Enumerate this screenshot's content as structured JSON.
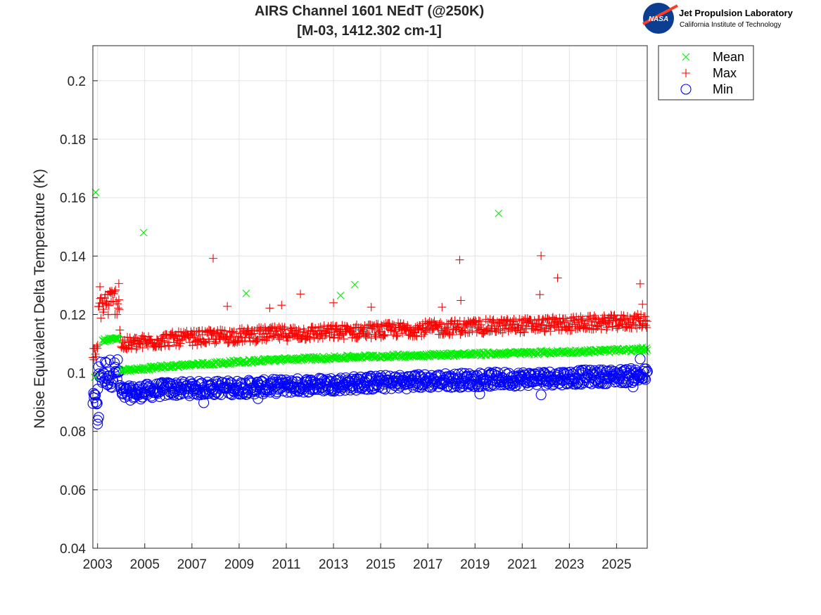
{
  "logo": {
    "nasa_text": "NASA",
    "title": "Jet Propulsion Laboratory",
    "subtitle": "California Institute of Technology",
    "nasa_blue": "#0b3d91",
    "nasa_red": "#fc3d21"
  },
  "chart_data": {
    "type": "scatter",
    "title": [
      "AIRS Channel 1601 NEdT (@250K)",
      "[M-03, 1412.302 cm-1]"
    ],
    "xlabel": "",
    "ylabel": "Noise Equivalent Delta Temperature (K)",
    "xlim": [
      2002.8,
      2026.3
    ],
    "ylim": [
      0.04,
      0.212
    ],
    "xticks": [
      2003,
      2005,
      2007,
      2009,
      2011,
      2013,
      2015,
      2017,
      2019,
      2021,
      2023,
      2025
    ],
    "yticks": [
      0.04,
      0.06,
      0.08,
      0.1,
      0.12,
      0.14,
      0.16,
      0.18,
      0.2
    ],
    "ytick_labels": [
      "0.04",
      "0.06",
      "0.08",
      "0.1",
      "0.12",
      "0.14",
      "0.16",
      "0.18",
      "0.2"
    ],
    "grid": true,
    "legend_position": "outside-top-right",
    "series": [
      {
        "name": "Mean",
        "marker": "x",
        "color": "#00ee00",
        "trend": [
          [
            2003.2,
            0.1112
          ],
          [
            2003.9,
            0.1118
          ],
          [
            2004.0,
            0.1006
          ],
          [
            2006.0,
            0.1023
          ],
          [
            2010.0,
            0.1043
          ],
          [
            2014.0,
            0.1055
          ],
          [
            2018.0,
            0.1063
          ],
          [
            2022.0,
            0.107
          ],
          [
            2026.3,
            0.108
          ]
        ],
        "points": [
          [
            2002.88,
            0.0985
          ],
          [
            2002.92,
            0.1618
          ],
          [
            2003.3,
            0.1108
          ],
          [
            2003.6,
            0.1115
          ],
          [
            2003.8,
            0.112
          ],
          [
            2004.95,
            0.148
          ],
          [
            2009.3,
            0.1272
          ],
          [
            2013.3,
            0.1265
          ],
          [
            2013.9,
            0.1302
          ],
          [
            2020.0,
            0.1546
          ],
          [
            2026.1,
            0.1088
          ]
        ]
      },
      {
        "name": "Max",
        "marker": "+",
        "color": "#ff0000",
        "trend": [
          [
            2002.8,
            0.1065
          ],
          [
            2003.0,
            0.1068
          ],
          [
            2003.05,
            0.123
          ],
          [
            2003.9,
            0.125
          ],
          [
            2004.0,
            0.1095
          ],
          [
            2006.0,
            0.1115
          ],
          [
            2010.0,
            0.1132
          ],
          [
            2014.0,
            0.1142
          ],
          [
            2018.0,
            0.1155
          ],
          [
            2022.0,
            0.1165
          ],
          [
            2026.3,
            0.1178
          ]
        ],
        "points": [
          [
            2003.1,
            0.1295
          ],
          [
            2003.9,
            0.1306
          ],
          [
            2007.9,
            0.1392
          ],
          [
            2008.5,
            0.1228
          ],
          [
            2010.3,
            0.1222
          ],
          [
            2010.8,
            0.1232
          ],
          [
            2011.6,
            0.127
          ],
          [
            2013.0,
            0.124
          ],
          [
            2014.6,
            0.1225
          ],
          [
            2017.6,
            0.1225
          ],
          [
            2018.35,
            0.1387
          ],
          [
            2018.4,
            0.1248
          ],
          [
            2021.8,
            0.1401
          ],
          [
            2021.75,
            0.1268
          ],
          [
            2022.5,
            0.1325
          ],
          [
            2026.0,
            0.1305
          ],
          [
            2026.1,
            0.1235
          ]
        ]
      },
      {
        "name": "Min",
        "marker": "o",
        "color": "#0000ff",
        "trend": [
          [
            2002.8,
            0.0905
          ],
          [
            2003.0,
            0.091
          ],
          [
            2003.05,
            0.1
          ],
          [
            2003.9,
            0.1
          ],
          [
            2004.0,
            0.0928
          ],
          [
            2006.0,
            0.0945
          ],
          [
            2010.0,
            0.0952
          ],
          [
            2014.0,
            0.0965
          ],
          [
            2018.0,
            0.0975
          ],
          [
            2022.0,
            0.0982
          ],
          [
            2026.3,
            0.0992
          ]
        ],
        "points": [
          [
            2003.0,
            0.0838
          ],
          [
            2003.0,
            0.0825
          ],
          [
            2003.05,
            0.0848
          ],
          [
            2007.5,
            0.0898
          ],
          [
            2009.8,
            0.0912
          ],
          [
            2019.2,
            0.0928
          ],
          [
            2021.8,
            0.0925
          ],
          [
            2025.7,
            0.0952
          ],
          [
            2026.0,
            0.1048
          ]
        ]
      }
    ]
  }
}
